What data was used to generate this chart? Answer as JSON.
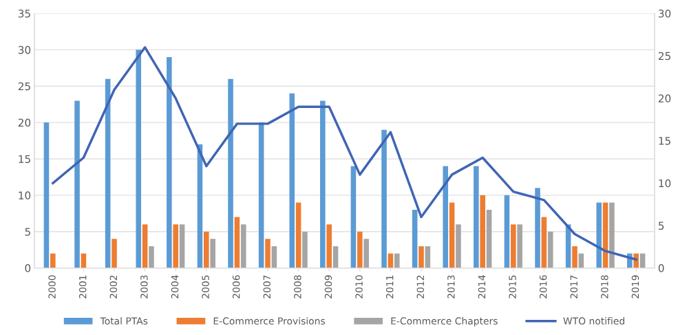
{
  "chart_data": {
    "type": "bar",
    "categories": [
      "2000",
      "2001",
      "2002",
      "2003",
      "2004",
      "2005",
      "2006",
      "2007",
      "2008",
      "2009",
      "2010",
      "2011",
      "2012",
      "2013",
      "2014",
      "2015",
      "2016",
      "2017",
      "2018",
      "2019"
    ],
    "series": [
      {
        "name": "Total PTAs",
        "color": "#5b9bd5",
        "values": [
          20,
          23,
          26,
          30,
          29,
          17,
          26,
          20,
          24,
          23,
          14,
          19,
          8,
          14,
          14,
          10,
          11,
          6,
          9,
          2
        ]
      },
      {
        "name": "E-Commerce Provisions",
        "color": "#ed7d31",
        "values": [
          2,
          2,
          4,
          6,
          6,
          5,
          7,
          4,
          9,
          6,
          5,
          2,
          3,
          9,
          10,
          6,
          7,
          3,
          9,
          2
        ]
      },
      {
        "name": "E-Commerce Chapters",
        "color": "#a5a5a5",
        "values": [
          null,
          null,
          null,
          3,
          6,
          4,
          6,
          3,
          5,
          3,
          4,
          2,
          3,
          6,
          8,
          6,
          5,
          2,
          9,
          2
        ]
      },
      {
        "name": "WTO notified",
        "color": "#4065b4",
        "type": "line",
        "axis": "y2",
        "values": [
          10,
          13,
          21,
          26,
          20,
          12,
          17,
          17,
          19,
          19,
          11,
          16,
          6,
          11,
          13,
          9,
          8,
          4,
          2,
          1
        ]
      }
    ],
    "ylim": [
      0,
      35
    ],
    "yticks": [
      0,
      5,
      10,
      15,
      20,
      25,
      30,
      35
    ],
    "y2lim": [
      0,
      30
    ],
    "y2ticks": [
      0,
      5,
      10,
      15,
      20,
      25,
      30
    ],
    "grid": "y",
    "legend": "bottom",
    "marker": "none",
    "line_style": "solid"
  }
}
